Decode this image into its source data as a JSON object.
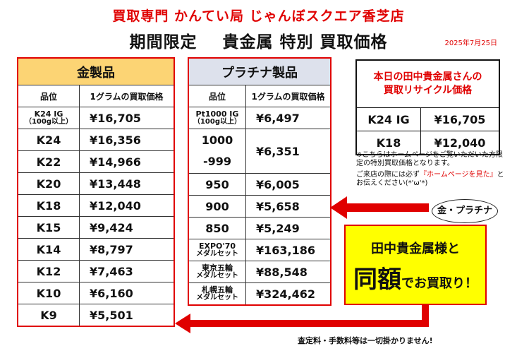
{
  "header": {
    "store": "買取専門 かんてい局 じゃんぼスクエア香芝店",
    "campaign_left": "期間限定",
    "campaign_right": "貴金属 特別 買取価格",
    "date": "2025年7月25日"
  },
  "gold": {
    "title": "金製品",
    "col_grade": "品位",
    "col_price": "1グラムの買取価格",
    "first_grade_line1": "K24 IG",
    "first_grade_line2": "（100g以上）",
    "first_price": "¥16,705",
    "rows": [
      {
        "grade": "K24",
        "price": "¥16,356"
      },
      {
        "grade": "K22",
        "price": "¥14,966"
      },
      {
        "grade": "K20",
        "price": "¥13,448"
      },
      {
        "grade": "K18",
        "price": "¥12,040"
      },
      {
        "grade": "K15",
        "price": "¥9,424"
      },
      {
        "grade": "K14",
        "price": "¥8,797"
      },
      {
        "grade": "K12",
        "price": "¥7,463"
      },
      {
        "grade": "K10",
        "price": "¥6,160"
      },
      {
        "grade": "K9",
        "price": "¥5,501"
      }
    ]
  },
  "platinum": {
    "title": "プラチナ製品",
    "col_grade": "品位",
    "col_price": "1グラムの買取価格",
    "first_grade_line1": "Pt1000 IG",
    "first_grade_line2": "（100g以上）",
    "first_price": "¥6,497",
    "pt1000_line1": "1000",
    "pt1000_line2": "-999",
    "pt1000_price": "¥6,351",
    "rows": [
      {
        "grade": "950",
        "price": "¥6,005"
      },
      {
        "grade": "900",
        "price": "¥5,658"
      },
      {
        "grade": "850",
        "price": "¥5,249"
      }
    ],
    "medals": [
      {
        "line1": "EXPO'70",
        "line2": "メダルセット",
        "price": "¥163,186"
      },
      {
        "line1": "東京五輪",
        "line2": "メダルセット",
        "price": "¥88,548"
      },
      {
        "line1": "札幌五輪",
        "line2": "メダルセット",
        "price": "¥324,462"
      }
    ]
  },
  "today": {
    "title_line1": "本日の田中貴金属さんの",
    "title_line2": "買取リサイクル価格",
    "rows": [
      {
        "grade": "K24 IG",
        "price": "¥16,705"
      },
      {
        "grade": "K18",
        "price": "¥12,040"
      }
    ]
  },
  "notes": {
    "note1": "※こちらはホームページをご覧いただいた方限定の特別買取価格となります。",
    "note2_a": "ご来店の際には必ず",
    "note2_red": "『ホームページを見た』",
    "note2_b": "とお伝えください(*'ω'*)"
  },
  "promo": {
    "bubble": "金・プラチナ",
    "line1": "田中貴金属様と",
    "big": "同額",
    "rest": "でお買取り！"
  },
  "footer": "査定料・手数料等は一切掛かりません!",
  "colors": {
    "accent_red": "#e00000",
    "gold_header": "#fcd474",
    "plat_header": "#dde1ec",
    "promo_yellow": "#ffff00"
  }
}
